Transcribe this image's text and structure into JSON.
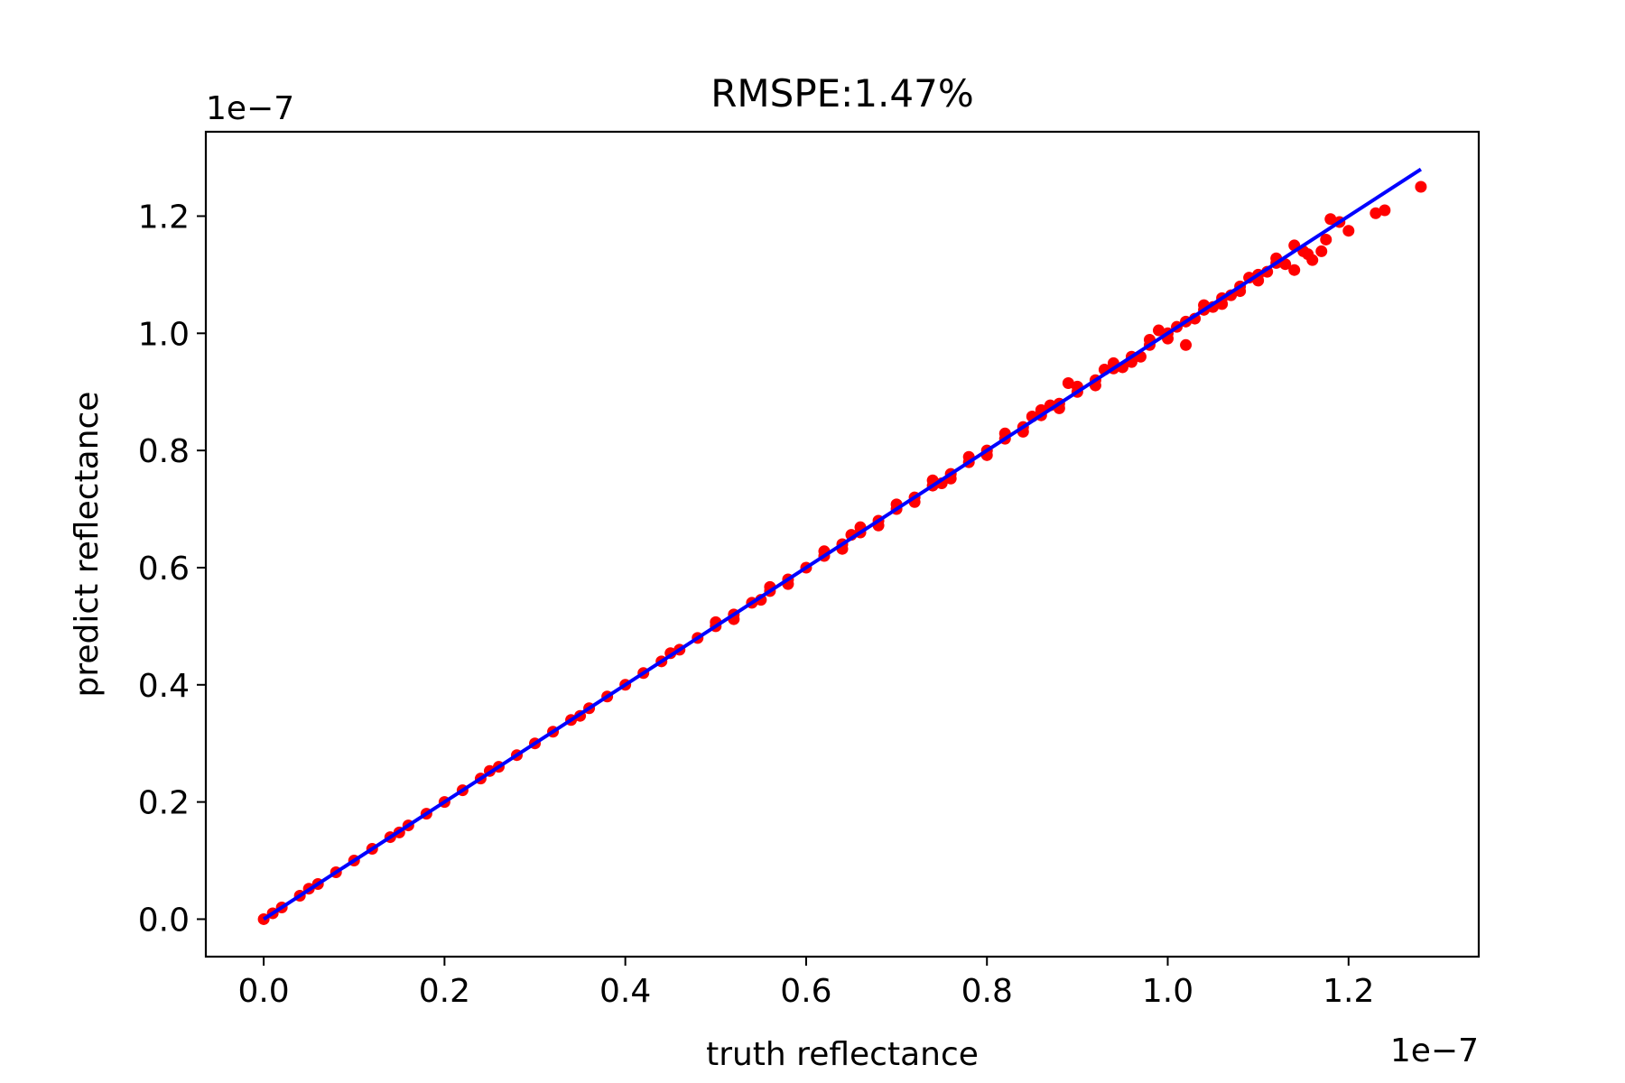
{
  "chart_data": {
    "type": "scatter",
    "title": "RMSPE:1.47%",
    "xlabel": "truth reflectance",
    "ylabel": "predict reflectance",
    "x_offset_label": "1e−7",
    "y_offset_label": "1e−7",
    "xlim": [
      -0.064,
      1.344
    ],
    "ylim": [
      -0.064,
      1.344
    ],
    "xticks": [
      0.0,
      0.2,
      0.4,
      0.6,
      0.8,
      1.0,
      1.2
    ],
    "xtick_labels": [
      "0.0",
      "0.2",
      "0.4",
      "0.6",
      "0.8",
      "1.0",
      "1.2"
    ],
    "yticks": [
      0.0,
      0.2,
      0.4,
      0.6,
      0.8,
      1.0,
      1.2
    ],
    "ytick_labels": [
      "0.0",
      "0.2",
      "0.4",
      "0.6",
      "0.8",
      "1.0",
      "1.2"
    ],
    "grid": false,
    "series": [
      {
        "kind": "scatter",
        "color": "#ff0000",
        "points": [
          [
            0.0,
            0.0
          ],
          [
            0.01,
            0.01
          ],
          [
            0.02,
            0.02
          ],
          [
            0.04,
            0.04
          ],
          [
            0.06,
            0.06
          ],
          [
            0.08,
            0.08
          ],
          [
            0.1,
            0.1
          ],
          [
            0.12,
            0.12
          ],
          [
            0.14,
            0.14
          ],
          [
            0.16,
            0.16
          ],
          [
            0.18,
            0.18
          ],
          [
            0.2,
            0.2
          ],
          [
            0.22,
            0.22
          ],
          [
            0.24,
            0.24
          ],
          [
            0.26,
            0.26
          ],
          [
            0.28,
            0.28
          ],
          [
            0.3,
            0.3
          ],
          [
            0.32,
            0.32
          ],
          [
            0.34,
            0.34
          ],
          [
            0.36,
            0.36
          ],
          [
            0.38,
            0.38
          ],
          [
            0.4,
            0.4
          ],
          [
            0.42,
            0.42
          ],
          [
            0.44,
            0.44
          ],
          [
            0.46,
            0.46
          ],
          [
            0.48,
            0.48
          ],
          [
            0.5,
            0.5
          ],
          [
            0.52,
            0.52
          ],
          [
            0.54,
            0.54
          ],
          [
            0.56,
            0.56
          ],
          [
            0.58,
            0.58
          ],
          [
            0.6,
            0.6
          ],
          [
            0.62,
            0.62
          ],
          [
            0.64,
            0.64
          ],
          [
            0.66,
            0.66
          ],
          [
            0.68,
            0.68
          ],
          [
            0.7,
            0.7
          ],
          [
            0.72,
            0.72
          ],
          [
            0.74,
            0.74
          ],
          [
            0.76,
            0.76
          ],
          [
            0.78,
            0.78
          ],
          [
            0.8,
            0.8
          ],
          [
            0.82,
            0.82
          ],
          [
            0.84,
            0.84
          ],
          [
            0.86,
            0.86
          ],
          [
            0.88,
            0.88
          ],
          [
            0.9,
            0.9
          ],
          [
            0.92,
            0.92
          ],
          [
            0.94,
            0.94
          ],
          [
            0.96,
            0.96
          ],
          [
            0.98,
            0.98
          ],
          [
            1.0,
            1.0
          ],
          [
            1.02,
            1.02
          ],
          [
            1.04,
            1.04
          ],
          [
            1.06,
            1.06
          ],
          [
            1.08,
            1.08
          ],
          [
            1.1,
            1.1
          ],
          [
            1.12,
            1.12
          ],
          [
            0.05,
            0.052
          ],
          [
            0.15,
            0.148
          ],
          [
            0.25,
            0.253
          ],
          [
            0.35,
            0.347
          ],
          [
            0.45,
            0.454
          ],
          [
            0.55,
            0.545
          ],
          [
            0.65,
            0.656
          ],
          [
            0.75,
            0.744
          ],
          [
            0.85,
            0.858
          ],
          [
            0.95,
            0.942
          ],
          [
            0.5,
            0.507
          ],
          [
            0.52,
            0.512
          ],
          [
            0.56,
            0.567
          ],
          [
            0.58,
            0.572
          ],
          [
            0.62,
            0.628
          ],
          [
            0.64,
            0.632
          ],
          [
            0.66,
            0.669
          ],
          [
            0.68,
            0.672
          ],
          [
            0.7,
            0.708
          ],
          [
            0.72,
            0.712
          ],
          [
            0.74,
            0.749
          ],
          [
            0.76,
            0.752
          ],
          [
            0.78,
            0.789
          ],
          [
            0.8,
            0.792
          ],
          [
            0.82,
            0.829
          ],
          [
            0.84,
            0.832
          ],
          [
            0.86,
            0.869
          ],
          [
            0.88,
            0.872
          ],
          [
            0.9,
            0.909
          ],
          [
            0.92,
            0.911
          ],
          [
            0.94,
            0.949
          ],
          [
            0.96,
            0.951
          ],
          [
            0.98,
            0.989
          ],
          [
            1.0,
            0.991
          ],
          [
            0.87,
            0.877
          ],
          [
            0.89,
            0.915
          ],
          [
            0.93,
            0.938
          ],
          [
            0.97,
            0.96
          ],
          [
            0.99,
            1.005
          ],
          [
            1.01,
            1.011
          ],
          [
            1.03,
            1.025
          ],
          [
            1.05,
            1.045
          ],
          [
            1.07,
            1.065
          ],
          [
            1.09,
            1.095
          ],
          [
            1.02,
            0.98
          ],
          [
            1.04,
            1.048
          ],
          [
            1.06,
            1.05
          ],
          [
            1.08,
            1.072
          ],
          [
            1.1,
            1.09
          ],
          [
            1.11,
            1.105
          ],
          [
            1.12,
            1.128
          ],
          [
            1.13,
            1.118
          ],
          [
            1.14,
            1.108
          ],
          [
            1.15,
            1.14
          ],
          [
            1.16,
            1.125
          ],
          [
            1.17,
            1.14
          ],
          [
            1.18,
            1.195
          ],
          [
            1.19,
            1.19
          ],
          [
            1.2,
            1.175
          ],
          [
            1.14,
            1.15
          ],
          [
            1.155,
            1.135
          ],
          [
            1.175,
            1.16
          ],
          [
            1.23,
            1.205
          ],
          [
            1.24,
            1.21
          ],
          [
            1.28,
            1.25
          ]
        ]
      },
      {
        "kind": "line",
        "color": "#0000ff",
        "points": [
          [
            0.0,
            0.0
          ],
          [
            1.28,
            1.28
          ]
        ]
      }
    ]
  }
}
